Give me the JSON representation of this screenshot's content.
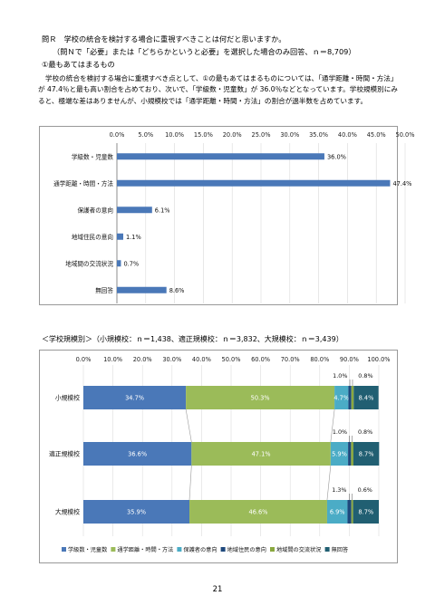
{
  "question": {
    "title": "問Ｒ　学校の統合を検討する場合に重視すべきことは何だと思いますか。",
    "condition": "（問Ｎで「必要」または「どちらかというと必要」を選択した場合のみ回答、ｎ＝8,709）",
    "section": "①最もあてはまるもの"
  },
  "paragraph": "学校の統合を検討する場合に重視すべき点として、①の最もあてはまるものについては、「通学距離・時間・方法」が 47.4％と最も高い割合を占めており、次いで、「学級数・児童数」が 36.0％などとなっています。学校規模別にみると、極端な差はありませんが、小規模校では「通学距離・時間・方法」の割合が過半数を占めています。",
  "subtitle": "＜学校規模別＞（小規模校：ｎ＝1,438、適正規模校：ｎ＝3,832、大規模校：ｎ＝3,439）",
  "page_number": "21",
  "chart_data": [
    {
      "type": "bar",
      "orientation": "horizontal",
      "categories": [
        "学級数・児童数",
        "通学距離・時間・方法",
        "保護者の意向",
        "地域住民の意向",
        "地域間の交流状況",
        "無回答"
      ],
      "values": [
        36.0,
        47.4,
        6.1,
        1.1,
        0.7,
        8.6
      ],
      "value_labels": [
        "36.0%",
        "47.4%",
        "6.1%",
        "1.1%",
        "0.7%",
        "8.6%"
      ],
      "xlim": [
        0,
        50
      ],
      "ticks": [
        "0.0%",
        "5.0%",
        "10.0%",
        "15.0%",
        "20.0%",
        "25.0%",
        "30.0%",
        "35.0%",
        "40.0%",
        "45.0%",
        "50.0%"
      ],
      "color": "#4a78b8"
    },
    {
      "type": "bar",
      "orientation": "horizontal",
      "stacked": true,
      "categories": [
        "小規模校",
        "適正規模校",
        "大規模校"
      ],
      "xlim": [
        0,
        100
      ],
      "ticks": [
        "0.0%",
        "10.0%",
        "20.0%",
        "30.0%",
        "40.0%",
        "50.0%",
        "60.0%",
        "70.0%",
        "80.0%",
        "90.0%",
        "100.0%"
      ],
      "series": [
        {
          "name": "学級数・児童数",
          "color": "#4a78b8",
          "values": [
            34.7,
            36.6,
            35.9
          ],
          "labels": [
            "34.7%",
            "36.6%",
            "35.9%"
          ]
        },
        {
          "name": "通学距離・時間・方法",
          "color": "#9bbb59",
          "values": [
            50.3,
            47.1,
            46.6
          ],
          "labels": [
            "50.3%",
            "47.1%",
            "46.6%"
          ]
        },
        {
          "name": "保護者の意向",
          "color": "#4bacc6",
          "values": [
            4.7,
            5.9,
            6.9
          ],
          "labels": [
            "4.7%",
            "5.9%",
            "6.9%"
          ]
        },
        {
          "name": "地域住民の意向",
          "color": "#1f497d",
          "values": [
            1.0,
            1.0,
            1.3
          ],
          "labels": [
            "1.0%",
            "1.0%",
            "1.3%"
          ]
        },
        {
          "name": "地域間の交流状況",
          "color": "#8aa83f",
          "values": [
            0.8,
            0.8,
            0.6
          ],
          "labels": [
            "0.8%",
            "0.8%",
            "0.6%"
          ]
        },
        {
          "name": "無回答",
          "color": "#215f72",
          "values": [
            8.4,
            8.7,
            8.7
          ],
          "labels": [
            "8.4%",
            "8.7%",
            "8.7%"
          ]
        }
      ]
    }
  ]
}
